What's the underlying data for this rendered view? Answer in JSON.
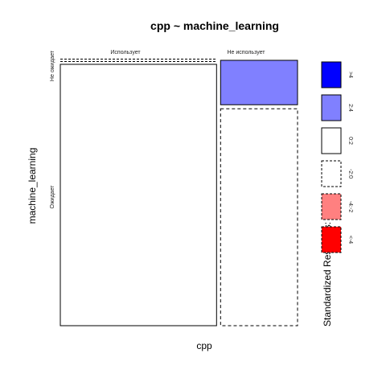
{
  "chart_data": {
    "type": "mosaic",
    "title": "cpp ~ machine_learning",
    "xlabel": "cpp",
    "ylabel": "machine_learning",
    "x_categories": [
      "Использует",
      "Не использует"
    ],
    "y_categories": [
      "Не ожидает",
      "Ожидает"
    ],
    "x_proportions": [
      0.67,
      0.33
    ],
    "cells": [
      {
        "x": "Использует",
        "y": "Не ожидает",
        "proportion_within_x": 0.0,
        "residual_band": "-2:0",
        "fill": "#ffffff"
      },
      {
        "x": "Использует",
        "y": "Ожидает",
        "proportion_within_x": 1.0,
        "residual_band": "0:2",
        "fill": "#ffffff"
      },
      {
        "x": "Не использует",
        "y": "Не ожидает",
        "proportion_within_x": 0.17,
        "residual_band": "2:4",
        "fill": "#8080ff"
      },
      {
        "x": "Не использует",
        "y": "Ожидает",
        "proportion_within_x": 0.83,
        "residual_band": "-2:0",
        "fill": "#ffffff"
      }
    ],
    "legend": {
      "title": "Standardized Residuals:",
      "placement": "right",
      "entries": [
        {
          "label": ">4",
          "fill": "#0000ff",
          "dashed": false
        },
        {
          "label": "2:4",
          "fill": "#8080ff",
          "dashed": false
        },
        {
          "label": "0:2",
          "fill": "#ffffff",
          "dashed": false
        },
        {
          "label": "-2:0",
          "fill": "#ffffff",
          "dashed": true
        },
        {
          "label": "-4:-2",
          "fill": "#ff8080",
          "dashed": true
        },
        {
          "label": "<-4",
          "fill": "#ff0000",
          "dashed": true
        }
      ]
    }
  }
}
